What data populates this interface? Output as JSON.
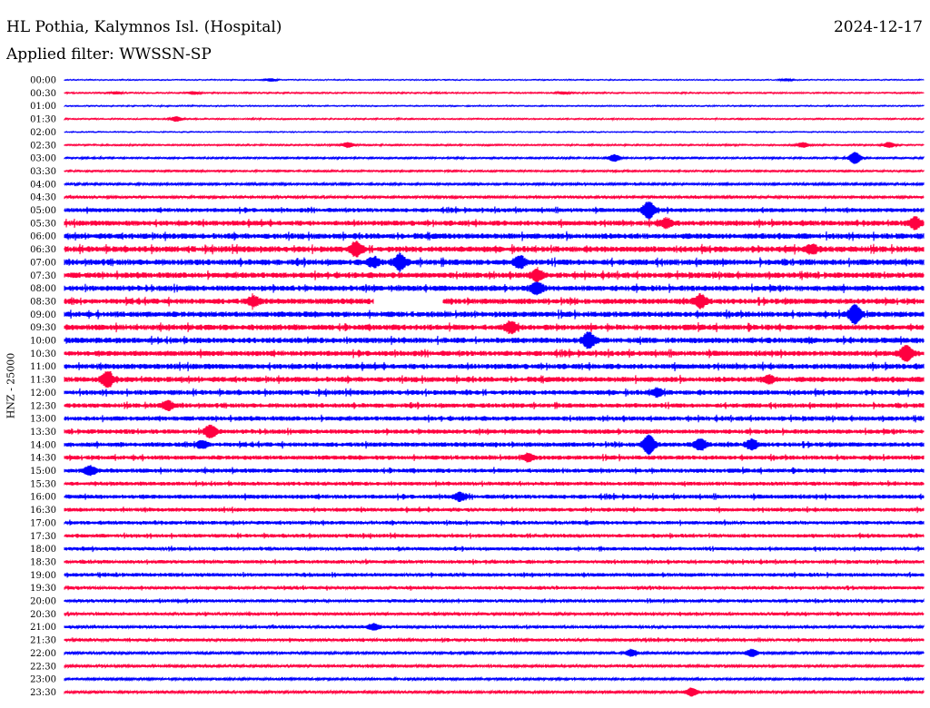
{
  "chart_data": {
    "type": "line",
    "title": "HL Pothia, Kalymnos Isl. (Hospital)",
    "date": "2024-12-17",
    "filter_label": "Applied filter: WWSSN-SP",
    "ylabel": "HNZ - 25000",
    "row_labels": [
      "00:00",
      "00:30",
      "01:00",
      "01:30",
      "02:00",
      "02:30",
      "03:00",
      "03:30",
      "04:00",
      "04:30",
      "05:00",
      "05:30",
      "06:00",
      "06:30",
      "07:00",
      "07:30",
      "08:00",
      "08:30",
      "09:00",
      "09:30",
      "10:00",
      "10:30",
      "11:00",
      "11:30",
      "12:00",
      "12:30",
      "13:00",
      "13:30",
      "14:00",
      "14:30",
      "15:00",
      "15:30",
      "16:00",
      "16:30",
      "17:00",
      "17:30",
      "18:00",
      "18:30",
      "19:00",
      "19:30",
      "20:00",
      "20:30",
      "21:00",
      "21:30",
      "22:00",
      "22:30",
      "23:00",
      "23:30"
    ],
    "colors": [
      "#0000ff",
      "#ff0040"
    ],
    "row_amplitudes": [
      0.3,
      0.5,
      0.4,
      0.5,
      0.3,
      0.6,
      0.7,
      0.7,
      1.0,
      1.3,
      2.2,
      2.8,
      3.0,
      3.2,
      3.2,
      3.0,
      3.0,
      3.0,
      3.0,
      3.0,
      3.0,
      2.8,
      2.9,
      2.8,
      2.6,
      2.4,
      2.4,
      2.4,
      2.4,
      2.3,
      2.2,
      2.0,
      2.2,
      2.0,
      1.9,
      1.9,
      1.8,
      1.8,
      1.9,
      1.6,
      1.6,
      1.5,
      1.5,
      1.5,
      1.2,
      1.2,
      1.0,
      1.2
    ],
    "events": [
      {
        "row": 0,
        "x": 0.24,
        "amp": 1.5
      },
      {
        "row": 0,
        "x": 0.84,
        "amp": 1.2
      },
      {
        "row": 1,
        "x": 0.06,
        "amp": 1.3
      },
      {
        "row": 1,
        "x": 0.15,
        "amp": 1.5
      },
      {
        "row": 1,
        "x": 0.58,
        "amp": 1.3
      },
      {
        "row": 3,
        "x": 0.13,
        "amp": 2.5
      },
      {
        "row": 5,
        "x": 0.33,
        "amp": 2.5
      },
      {
        "row": 5,
        "x": 0.86,
        "amp": 2.5
      },
      {
        "row": 5,
        "x": 0.96,
        "amp": 2.5
      },
      {
        "row": 6,
        "x": 0.64,
        "amp": 3.5
      },
      {
        "row": 6,
        "x": 0.92,
        "amp": 6.0
      },
      {
        "row": 10,
        "x": 0.68,
        "amp": 8.0
      },
      {
        "row": 11,
        "x": 0.7,
        "amp": 4.0
      },
      {
        "row": 11,
        "x": 0.99,
        "amp": 5.0
      },
      {
        "row": 13,
        "x": 0.34,
        "amp": 6.0
      },
      {
        "row": 13,
        "x": 0.87,
        "amp": 3.5
      },
      {
        "row": 14,
        "x": 0.36,
        "amp": 4.0
      },
      {
        "row": 14,
        "x": 0.39,
        "amp": 7.0
      },
      {
        "row": 14,
        "x": 0.53,
        "amp": 5.0
      },
      {
        "row": 15,
        "x": 0.55,
        "amp": 5.0
      },
      {
        "row": 16,
        "x": 0.55,
        "amp": 5.0
      },
      {
        "row": 17,
        "x": 0.22,
        "amp": 4.0
      },
      {
        "row": 17,
        "x": 0.74,
        "amp": 6.0
      },
      {
        "row": 18,
        "x": 0.92,
        "amp": 9.0
      },
      {
        "row": 19,
        "x": 0.52,
        "amp": 5.0
      },
      {
        "row": 20,
        "x": 0.61,
        "amp": 7.0
      },
      {
        "row": 21,
        "x": 0.98,
        "amp": 8.0
      },
      {
        "row": 23,
        "x": 0.05,
        "amp": 7.0
      },
      {
        "row": 23,
        "x": 0.82,
        "amp": 3.5
      },
      {
        "row": 24,
        "x": 0.69,
        "amp": 3.5
      },
      {
        "row": 25,
        "x": 0.12,
        "amp": 4.0
      },
      {
        "row": 27,
        "x": 0.17,
        "amp": 6.0
      },
      {
        "row": 28,
        "x": 0.16,
        "amp": 3.5
      },
      {
        "row": 28,
        "x": 0.68,
        "amp": 9.0
      },
      {
        "row": 28,
        "x": 0.74,
        "amp": 5.0
      },
      {
        "row": 28,
        "x": 0.8,
        "amp": 4.5
      },
      {
        "row": 29,
        "x": 0.54,
        "amp": 3.5
      },
      {
        "row": 30,
        "x": 0.03,
        "amp": 4.0
      },
      {
        "row": 32,
        "x": 0.46,
        "amp": 3.5
      },
      {
        "row": 42,
        "x": 0.36,
        "amp": 3.0
      },
      {
        "row": 44,
        "x": 0.66,
        "amp": 3.0
      },
      {
        "row": 44,
        "x": 0.8,
        "amp": 3.5
      },
      {
        "row": 47,
        "x": 0.73,
        "amp": 4.0
      }
    ],
    "gaps": [
      {
        "row": 17,
        "x0": 0.36,
        "x1": 0.44
      }
    ]
  }
}
